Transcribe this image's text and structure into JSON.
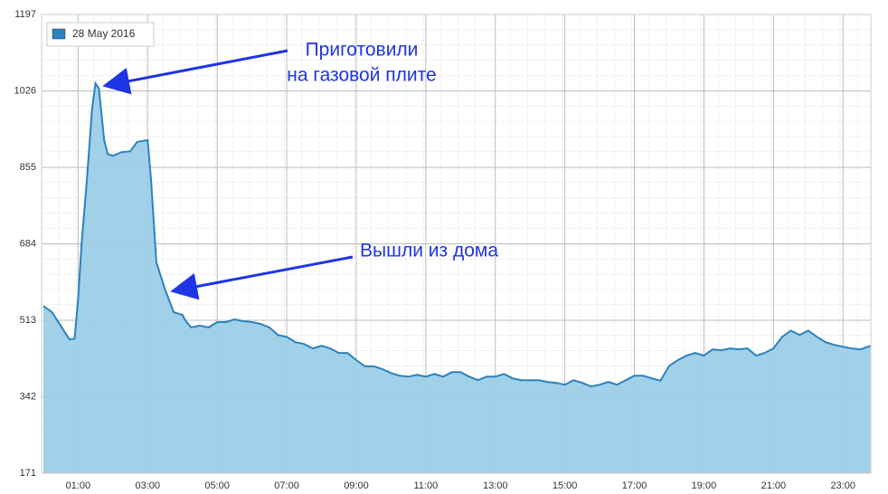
{
  "chart_data": {
    "type": "area",
    "series": [
      {
        "name": "28 May 2016",
        "color": "#2b82bd",
        "fill": "#9ccde8",
        "x": [
          0,
          0.25,
          0.5,
          0.75,
          0.9,
          1.0,
          1.1,
          1.25,
          1.4,
          1.5,
          1.6,
          1.75,
          1.85,
          2.0,
          2.25,
          2.5,
          2.7,
          3.0,
          3.1,
          3.25,
          3.5,
          3.75,
          4.0,
          4.1,
          4.25,
          4.5,
          4.75,
          5.0,
          5.25,
          5.5,
          5.75,
          6.0,
          6.25,
          6.5,
          6.75,
          7.0,
          7.25,
          7.5,
          7.75,
          8.0,
          8.25,
          8.5,
          8.75,
          9.0,
          9.25,
          9.5,
          9.75,
          10.0,
          10.25,
          10.5,
          10.75,
          11.0,
          11.25,
          11.5,
          11.75,
          12.0,
          12.25,
          12.5,
          12.75,
          13.0,
          13.25,
          13.5,
          13.75,
          14.0,
          14.25,
          14.5,
          14.75,
          15.0,
          15.25,
          15.5,
          15.75,
          16.0,
          16.25,
          16.5,
          16.75,
          17.0,
          17.25,
          17.5,
          17.75,
          18.0,
          18.25,
          18.5,
          18.75,
          19.0,
          19.25,
          19.5,
          19.75,
          20.0,
          20.25,
          20.5,
          20.75,
          21.0,
          21.25,
          21.5,
          21.75,
          22.0,
          22.25,
          22.5,
          22.75,
          23.0,
          23.25,
          23.5,
          23.8
        ],
        "values": [
          545,
          531,
          501,
          470,
          472,
          561,
          683,
          825,
          986,
          1043,
          1031,
          916,
          885,
          881,
          889,
          891,
          912,
          916,
          825,
          643,
          582,
          531,
          525,
          511,
          497,
          501,
          497,
          509,
          509,
          515,
          511,
          509,
          505,
          497,
          480,
          476,
          464,
          460,
          450,
          456,
          450,
          440,
          440,
          424,
          410,
          410,
          404,
          395,
          389,
          387,
          391,
          387,
          393,
          387,
          397,
          397,
          387,
          379,
          387,
          387,
          393,
          383,
          379,
          379,
          379,
          375,
          373,
          369,
          379,
          373,
          365,
          369,
          375,
          369,
          379,
          389,
          389,
          383,
          378,
          411,
          424,
          434,
          440,
          434,
          448,
          446,
          450,
          448,
          450,
          434,
          440,
          450,
          476,
          490,
          480,
          490,
          476,
          464,
          458,
          454,
          450,
          448,
          456
        ]
      }
    ],
    "xlim": [
      -0.05,
      23.8
    ],
    "xticks": [
      {
        "value": 1,
        "label": "01:00"
      },
      {
        "value": 3,
        "label": "03:00"
      },
      {
        "value": 5,
        "label": "05:00"
      },
      {
        "value": 7,
        "label": "07:00"
      },
      {
        "value": 9,
        "label": "09:00"
      },
      {
        "value": 11,
        "label": "11:00"
      },
      {
        "value": 13,
        "label": "13:00"
      },
      {
        "value": 15,
        "label": "15:00"
      },
      {
        "value": 17,
        "label": "17:00"
      },
      {
        "value": 19,
        "label": "19:00"
      },
      {
        "value": 21,
        "label": "21:00"
      },
      {
        "value": 23,
        "label": "23:00"
      }
    ],
    "ylim": [
      171,
      1197
    ],
    "yticks": [
      171,
      342,
      513,
      684,
      855,
      1026,
      1197
    ],
    "grid": true,
    "legend": "top-left",
    "annotations": [
      [
        "Приготовили",
        "на газовой плите"
      ],
      [
        "Вышли из дома"
      ]
    ]
  }
}
